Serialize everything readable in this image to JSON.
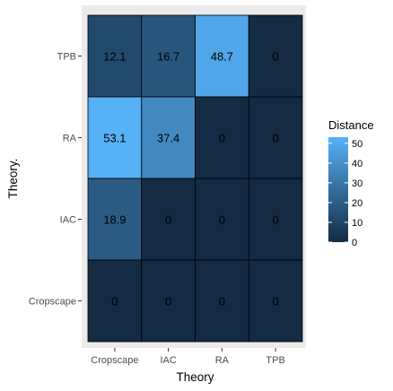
{
  "chart_data": {
    "type": "heatmap",
    "xlabel": "Theory",
    "ylabel": "Theory.",
    "x_categories": [
      "Cropscape",
      "IAC",
      "RA",
      "TPB"
    ],
    "y_categories": [
      "Cropscape",
      "IAC",
      "RA",
      "TPB"
    ],
    "cells": [
      {
        "x": "Cropscape",
        "y": "TPB",
        "value": 12.1,
        "label": "12.1"
      },
      {
        "x": "IAC",
        "y": "TPB",
        "value": 16.7,
        "label": "16.7"
      },
      {
        "x": "RA",
        "y": "TPB",
        "value": 48.7,
        "label": "48.7"
      },
      {
        "x": "TPB",
        "y": "TPB",
        "value": 0,
        "label": "0"
      },
      {
        "x": "Cropscape",
        "y": "RA",
        "value": 53.1,
        "label": "53.1"
      },
      {
        "x": "IAC",
        "y": "RA",
        "value": 37.4,
        "label": "37.4"
      },
      {
        "x": "RA",
        "y": "RA",
        "value": 0,
        "label": "0"
      },
      {
        "x": "TPB",
        "y": "RA",
        "value": 0,
        "label": "0"
      },
      {
        "x": "Cropscape",
        "y": "IAC",
        "value": 18.9,
        "label": "18.9"
      },
      {
        "x": "IAC",
        "y": "IAC",
        "value": 0,
        "label": "0"
      },
      {
        "x": "RA",
        "y": "IAC",
        "value": 0,
        "label": "0"
      },
      {
        "x": "TPB",
        "y": "IAC",
        "value": 0,
        "label": "0"
      },
      {
        "x": "Cropscape",
        "y": "Cropscape",
        "value": 0,
        "label": "0"
      },
      {
        "x": "IAC",
        "y": "Cropscape",
        "value": 0,
        "label": "0"
      },
      {
        "x": "RA",
        "y": "Cropscape",
        "value": 0,
        "label": "0"
      },
      {
        "x": "TPB",
        "y": "Cropscape",
        "value": 0,
        "label": "0"
      }
    ],
    "legend": {
      "title": "Distance",
      "range": [
        0,
        53.1
      ],
      "ticks": [
        0,
        10,
        20,
        30,
        40,
        50
      ],
      "low_color": "#132B43",
      "high_color": "#56B1F7",
      "placement": "right"
    },
    "panel_color": "#EBEBEB",
    "cell_border_color": "#000000",
    "grid": false
  }
}
